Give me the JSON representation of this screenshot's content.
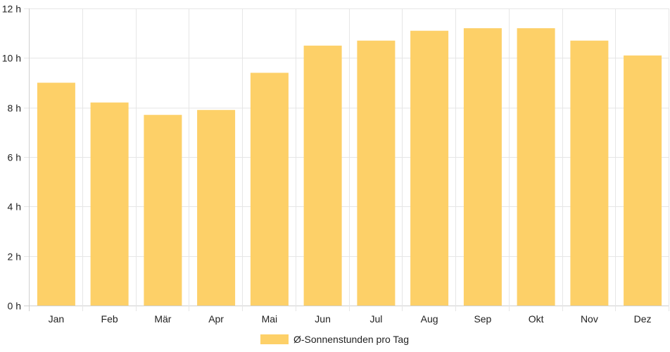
{
  "chart_data": {
    "type": "bar",
    "categories": [
      "Jan",
      "Feb",
      "Mär",
      "Apr",
      "Mai",
      "Jun",
      "Jul",
      "Aug",
      "Sep",
      "Okt",
      "Nov",
      "Dez"
    ],
    "series": [
      {
        "name": "Ø-Sonnenstunden pro Tag",
        "values": [
          9.0,
          8.2,
          7.7,
          7.9,
          9.4,
          10.5,
          10.7,
          11.1,
          11.2,
          11.2,
          10.7,
          10.1
        ],
        "color": "#fdd068"
      }
    ],
    "y_ticks": [
      "0 h",
      "2 h",
      "4 h",
      "6 h",
      "8 h",
      "10 h",
      "12 h"
    ],
    "ylim": [
      0,
      12
    ],
    "grid": true,
    "legend_position": "bottom-center"
  }
}
